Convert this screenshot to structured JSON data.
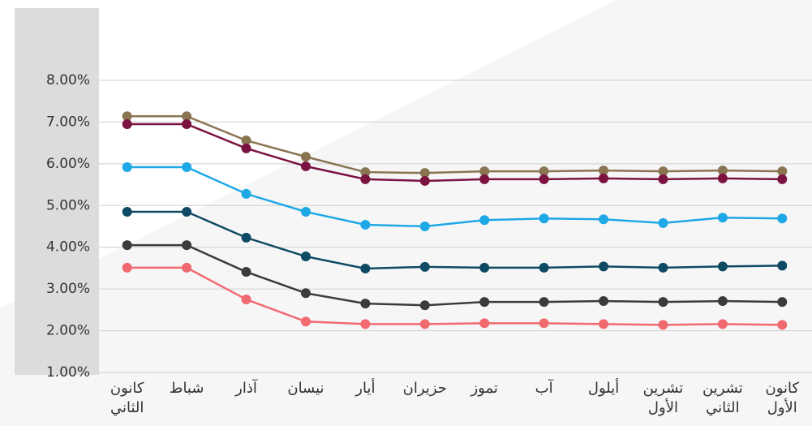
{
  "chart_data": {
    "type": "line",
    "categories": [
      "كانون الثاني",
      "شباط",
      "آذار",
      "نيسان",
      "أيار",
      "حزيران",
      "تموز",
      "آب",
      "أيلول",
      "تشرين الأول",
      "تشرين الثاني",
      "كانون الأول"
    ],
    "series": [
      {
        "color": "#8a7553",
        "values": [
          7.14,
          7.14,
          6.56,
          6.17,
          5.8,
          5.78,
          5.82,
          5.82,
          5.84,
          5.82,
          5.84,
          5.82
        ]
      },
      {
        "color": "#7b1340",
        "values": [
          6.95,
          6.95,
          6.37,
          5.94,
          5.63,
          5.59,
          5.63,
          5.63,
          5.65,
          5.63,
          5.65,
          5.63
        ]
      },
      {
        "color": "#1ea8e6",
        "values": [
          5.92,
          5.92,
          5.28,
          4.85,
          4.54,
          4.5,
          4.65,
          4.69,
          4.67,
          4.58,
          4.71,
          4.69
        ]
      },
      {
        "color": "#0e4a63",
        "values": [
          4.85,
          4.85,
          4.23,
          3.78,
          3.49,
          3.53,
          3.51,
          3.51,
          3.54,
          3.51,
          3.54,
          3.56
        ]
      },
      {
        "color": "#3b3b3b",
        "values": [
          4.05,
          4.05,
          3.41,
          2.9,
          2.65,
          2.61,
          2.69,
          2.69,
          2.71,
          2.69,
          2.71,
          2.69
        ]
      },
      {
        "color": "#f06a70",
        "values": [
          3.51,
          3.51,
          2.75,
          2.22,
          2.16,
          2.16,
          2.18,
          2.18,
          2.16,
          2.14,
          2.16,
          2.14
        ]
      }
    ],
    "ylim": [
      1,
      8
    ],
    "yticks": [
      {
        "value": 1,
        "label": "1.00%"
      },
      {
        "value": 2,
        "label": "2.00%"
      },
      {
        "value": 3,
        "label": "3.00%"
      },
      {
        "value": 4,
        "label": "4.00%"
      },
      {
        "value": 5,
        "label": "5.00%"
      },
      {
        "value": 6,
        "label": "6.00%"
      },
      {
        "value": 7,
        "label": "7.00%"
      },
      {
        "value": 8,
        "label": "8.00%"
      }
    ],
    "grid": true
  }
}
